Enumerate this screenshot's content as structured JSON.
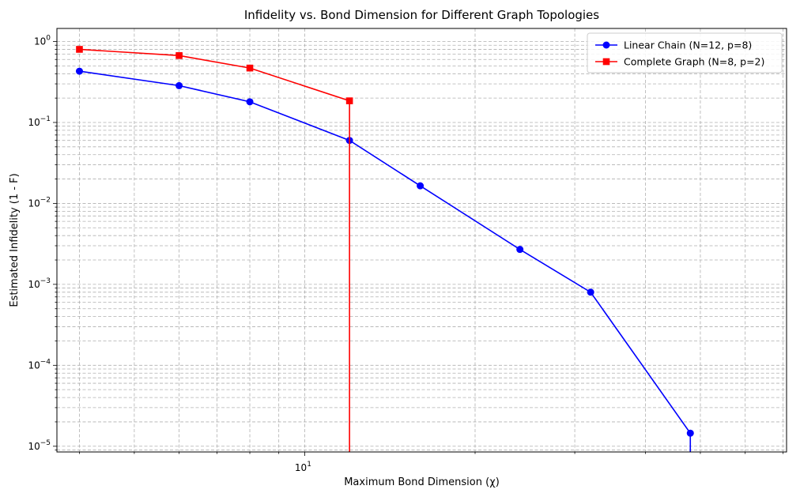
{
  "chart_data": {
    "type": "line",
    "title": "Infidelity vs. Bond Dimension for Different Graph Topologies",
    "xlabel": "Maximum Bond Dimension (χ)",
    "ylabel": "Estimated Infidelity (1 - F)",
    "xscale": "log",
    "yscale": "log",
    "xlim": [
      3.65,
      71
    ],
    "ylim": [
      8.5e-06,
      1.45
    ],
    "grid": true,
    "grid_which": "both",
    "legend_position": "top-right",
    "x_tick_labels": [
      {
        "value": 10,
        "base": "10",
        "exp": "1"
      }
    ],
    "y_tick_labels": [
      {
        "value": 1,
        "base": "10",
        "exp": "0"
      },
      {
        "value": 0.1,
        "base": "10",
        "exp": "−1"
      },
      {
        "value": 0.01,
        "base": "10",
        "exp": "−2"
      },
      {
        "value": 0.001,
        "base": "10",
        "exp": "−3"
      },
      {
        "value": 0.0001,
        "base": "10",
        "exp": "−4"
      },
      {
        "value": 1e-05,
        "base": "10",
        "exp": "−5"
      }
    ],
    "series": [
      {
        "name": "Linear Chain (N=12, p=8)",
        "color": "#0000ff",
        "marker": "circle",
        "x": [
          4,
          6,
          8,
          12,
          16,
          24,
          32,
          48
        ],
        "y": [
          0.43,
          0.285,
          0.18,
          0.06,
          0.0165,
          0.0027,
          0.0008,
          1.45e-05
        ],
        "drops_to_zero_after_last": true
      },
      {
        "name": "Complete Graph (N=8, p=2)",
        "color": "#ff0000",
        "marker": "square",
        "x": [
          4,
          6,
          8,
          12
        ],
        "y": [
          0.8,
          0.67,
          0.47,
          0.185
        ],
        "drops_to_zero_after_last": true
      }
    ]
  }
}
